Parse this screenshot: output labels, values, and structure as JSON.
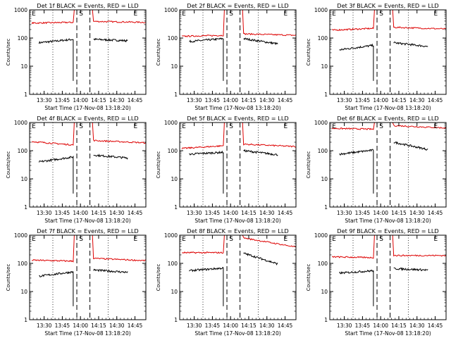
{
  "figure": {
    "ylabel": "Counts/sec",
    "xlabel": "Start Time (17-Nov-08 13:18:20)",
    "yticks": [
      "1",
      "10",
      "100",
      "1000"
    ],
    "xticks": [
      "13:30",
      "13:45",
      "14:00",
      "14:15",
      "14:30",
      "14:45"
    ],
    "markers": {
      "E": "E",
      "S": "S"
    },
    "colors": {
      "events": "#000000",
      "lld": "#dd0000"
    }
  },
  "chart_data": [
    {
      "type": "line",
      "title": "Det 1f BLACK = Events, RED = LLD",
      "ylim": [
        1,
        1000
      ],
      "yscale": "log",
      "series": [
        {
          "name": "Events",
          "segments": [
            {
              "x": [
                13.43,
                13.9
              ],
              "y": [
                68,
                90
              ]
            },
            {
              "x": [
                14.18,
                14.65
              ],
              "y": [
                90,
                80
              ]
            }
          ]
        },
        {
          "name": "LLD",
          "segments": [
            {
              "x": [
                13.33,
                13.9
              ],
              "y": [
                340,
                360
              ]
            },
            {
              "x": [
                14.18,
                14.9
              ],
              "y": [
                390,
                360
              ]
            }
          ]
        }
      ]
    },
    {
      "type": "line",
      "title": "Det 2f BLACK = Events, RED = LLD",
      "ylim": [
        1,
        1000
      ],
      "yscale": "log",
      "series": [
        {
          "name": "Events",
          "segments": [
            {
              "x": [
                13.43,
                13.9
              ],
              "y": [
                75,
                95
              ]
            },
            {
              "x": [
                14.18,
                14.65
              ],
              "y": [
                95,
                62
              ]
            }
          ]
        },
        {
          "name": "LLD",
          "segments": [
            {
              "x": [
                13.33,
                13.9
              ],
              "y": [
                115,
                125
              ]
            },
            {
              "x": [
                14.18,
                14.9
              ],
              "y": [
                140,
                125
              ]
            }
          ]
        }
      ]
    },
    {
      "type": "line",
      "title": "Det 3f BLACK = Events, RED = LLD",
      "ylim": [
        1,
        1000
      ],
      "yscale": "log",
      "series": [
        {
          "name": "Events",
          "segments": [
            {
              "x": [
                13.43,
                13.9
              ],
              "y": [
                38,
                55
              ]
            },
            {
              "x": [
                14.18,
                14.65
              ],
              "y": [
                68,
                50
              ]
            }
          ]
        },
        {
          "name": "LLD",
          "segments": [
            {
              "x": [
                13.33,
                13.9
              ],
              "y": [
                190,
                220
              ]
            },
            {
              "x": [
                14.18,
                14.9
              ],
              "y": [
                240,
                210
              ]
            }
          ]
        }
      ]
    },
    {
      "type": "line",
      "title": "Det 4f BLACK = Events, RED = LLD",
      "ylim": [
        1,
        1000
      ],
      "yscale": "log",
      "series": [
        {
          "name": "Events",
          "segments": [
            {
              "x": [
                13.43,
                13.9
              ],
              "y": [
                40,
                60
              ]
            },
            {
              "x": [
                14.18,
                14.65
              ],
              "y": [
                70,
                55
              ]
            }
          ]
        },
        {
          "name": "LLD",
          "segments": [
            {
              "x": [
                13.33,
                13.9
              ],
              "y": [
                210,
                160
              ]
            },
            {
              "x": [
                14.18,
                14.9
              ],
              "y": [
                230,
                190
              ]
            }
          ]
        }
      ]
    },
    {
      "type": "line",
      "title": "Det 5f BLACK = Events, RED = LLD",
      "ylim": [
        1,
        1000
      ],
      "yscale": "log",
      "series": [
        {
          "name": "Events",
          "segments": [
            {
              "x": [
                13.43,
                13.9
              ],
              "y": [
                75,
                88
              ]
            },
            {
              "x": [
                14.18,
                14.65
              ],
              "y": [
                100,
                72
              ]
            }
          ]
        },
        {
          "name": "LLD",
          "segments": [
            {
              "x": [
                13.33,
                13.9
              ],
              "y": [
                120,
                150
              ]
            },
            {
              "x": [
                14.18,
                14.9
              ],
              "y": [
                170,
                140
              ]
            }
          ]
        }
      ]
    },
    {
      "type": "line",
      "title": "Det 6f BLACK = Events, RED = LLD",
      "ylim": [
        1,
        1000
      ],
      "yscale": "log",
      "series": [
        {
          "name": "Events",
          "segments": [
            {
              "x": [
                13.43,
                13.9
              ],
              "y": [
                75,
                105
              ]
            },
            {
              "x": [
                14.18,
                14.65
              ],
              "y": [
                200,
                110
              ]
            }
          ]
        },
        {
          "name": "LLD",
          "segments": [
            {
              "x": [
                13.33,
                13.9
              ],
              "y": [
                620,
                580
              ]
            },
            {
              "x": [
                14.18,
                14.9
              ],
              "y": [
                780,
                640
              ]
            }
          ]
        }
      ]
    },
    {
      "type": "line",
      "title": "Det 7f BLACK = Events, RED = LLD",
      "ylim": [
        1,
        1000
      ],
      "yscale": "log",
      "series": [
        {
          "name": "Events",
          "segments": [
            {
              "x": [
                13.43,
                13.9
              ],
              "y": [
                35,
                50
              ]
            },
            {
              "x": [
                14.18,
                14.65
              ],
              "y": [
                58,
                48
              ]
            }
          ]
        },
        {
          "name": "LLD",
          "segments": [
            {
              "x": [
                13.33,
                13.9
              ],
              "y": [
                130,
                120
              ]
            },
            {
              "x": [
                14.18,
                14.9
              ],
              "y": [
                150,
                125
              ]
            }
          ]
        }
      ]
    },
    {
      "type": "line",
      "title": "Det 8f BLACK = Events, RED = LLD",
      "ylim": [
        1,
        1000
      ],
      "yscale": "log",
      "series": [
        {
          "name": "Events",
          "segments": [
            {
              "x": [
                13.43,
                13.9
              ],
              "y": [
                55,
                68
              ]
            },
            {
              "x": [
                14.18,
                14.65
              ],
              "y": [
                230,
                95
              ]
            }
          ]
        },
        {
          "name": "LLD",
          "segments": [
            {
              "x": [
                13.33,
                13.9
              ],
              "y": [
                240,
                240
              ]
            },
            {
              "x": [
                14.18,
                14.9
              ],
              "y": [
                800,
                380
              ]
            }
          ]
        }
      ]
    },
    {
      "type": "line",
      "title": "Det 9f BLACK = Events, RED = LLD",
      "ylim": [
        1,
        1000
      ],
      "yscale": "log",
      "series": [
        {
          "name": "Events",
          "segments": [
            {
              "x": [
                13.43,
                13.9
              ],
              "y": [
                45,
                55
              ]
            },
            {
              "x": [
                14.18,
                14.65
              ],
              "y": [
                65,
                58
              ]
            }
          ]
        },
        {
          "name": "LLD",
          "segments": [
            {
              "x": [
                13.33,
                13.9
              ],
              "y": [
                170,
                160
              ]
            },
            {
              "x": [
                14.18,
                14.9
              ],
              "y": [
                190,
                190
              ]
            }
          ]
        }
      ]
    }
  ]
}
